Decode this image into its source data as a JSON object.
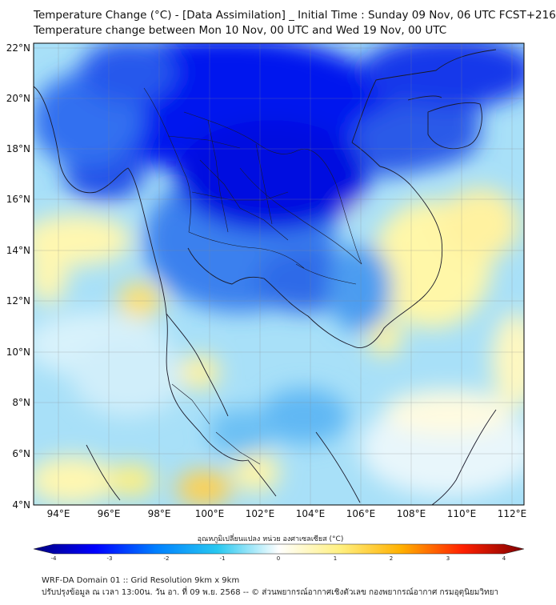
{
  "title": {
    "line1": "Temperature Change (°C) - [Data Assimilation] _ Initial Time : Sunday 09 Nov, 06 UTC FCST+216",
    "line2": "Temperature change between Mon 10 Nov, 00 UTC and Wed 19 Nov, 00 UTC"
  },
  "map": {
    "lon_range": [
      93,
      112.5
    ],
    "lat_range": [
      4,
      22.2
    ],
    "lat_ticks": [
      "22°N",
      "20°N",
      "18°N",
      "16°N",
      "14°N",
      "12°N",
      "10°N",
      "8°N",
      "6°N",
      "4°N"
    ],
    "lon_ticks": [
      "94°E",
      "96°E",
      "98°E",
      "100°E",
      "102°E",
      "104°E",
      "106°E",
      "108°E",
      "110°E",
      "112°E"
    ],
    "grid": true
  },
  "colorbar": {
    "label": "อุณหภูมิเปลี่ยนแปลง หน่วย องศาเซลเซียส (°C)",
    "range": [
      -4,
      4
    ],
    "ticks": [
      "-4",
      "-3",
      "-2",
      "-1",
      "0",
      "1",
      "2",
      "3",
      "4"
    ],
    "colors": [
      "#00007f",
      "#0000ff",
      "#0080ff",
      "#28c8f0",
      "#ffffff",
      "#fff080",
      "#ffb000",
      "#ff2000",
      "#7f0000"
    ]
  },
  "footer": {
    "line1": "WRF-DA Domain 01 :: Grid Resolution 9km x 9km",
    "line2": "ปรับปรุงข้อมูล ณ เวลา 13:00น. วัน อา. ที่ 09 พ.ย. 2568 -- © ส่วนพยากรณ์อากาศเชิงตัวเลข กองพยากรณ์อากาศ กรมอุตุนิยมวิทยา"
  }
}
